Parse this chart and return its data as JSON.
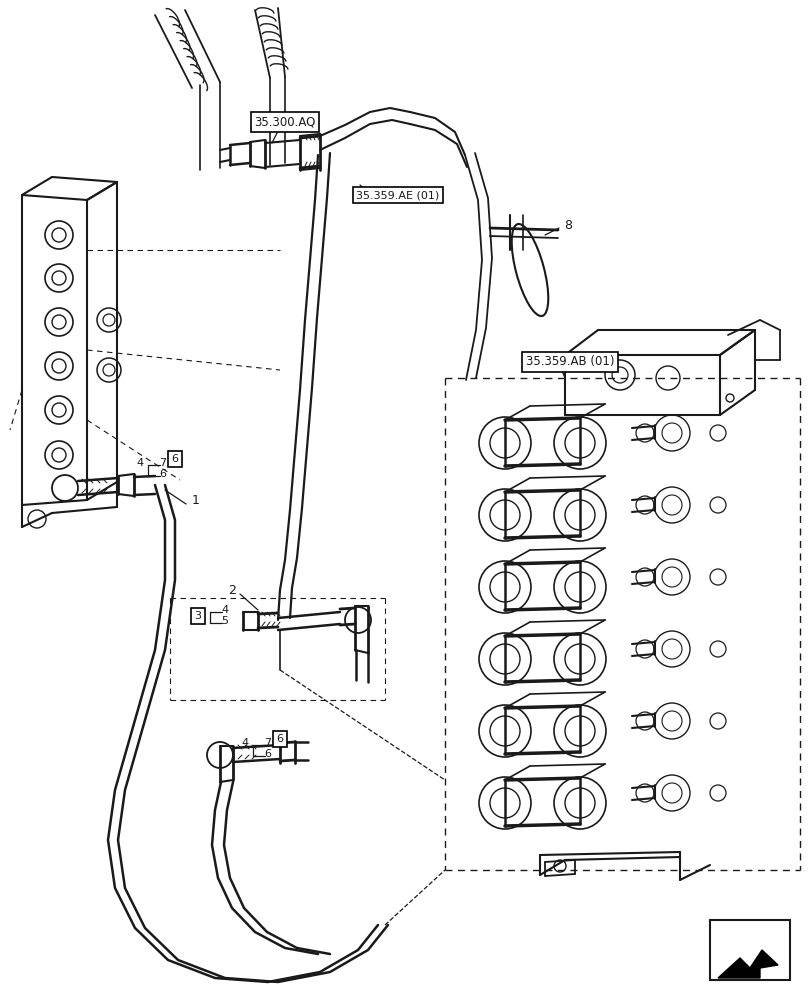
{
  "background_color": "#ffffff",
  "line_color": "#1a1a1a",
  "labels": {
    "ref1": "35.300.AQ",
    "ref2": "35.359.AE (01)",
    "ref3": "35.359.AB (01)",
    "part1": "1",
    "part2": "2",
    "part3": "3",
    "part4": "4",
    "part5": "5",
    "part6": "6",
    "part7": "7",
    "part8": "8"
  }
}
